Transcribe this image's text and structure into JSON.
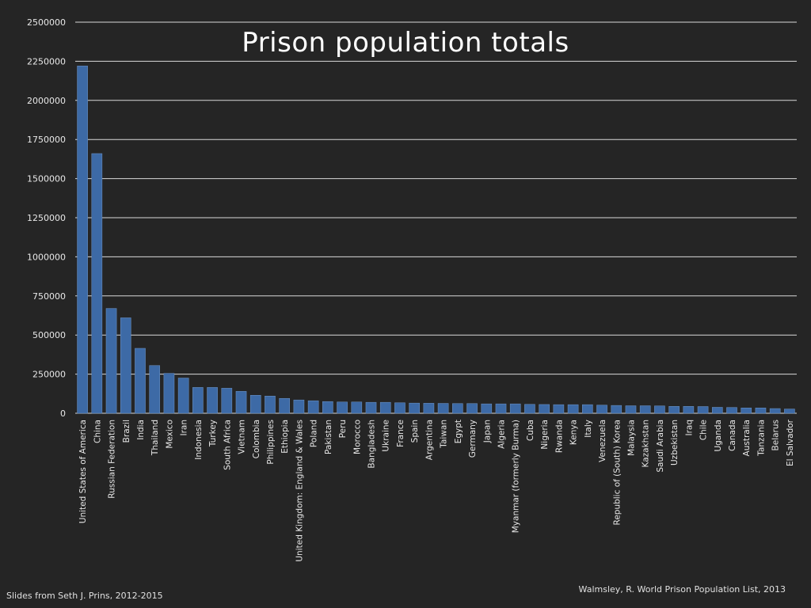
{
  "chart_data": {
    "type": "bar",
    "title": "Prison population totals",
    "xlabel": "",
    "ylabel": "",
    "ylim": [
      0,
      2500000
    ],
    "yticks": [
      0,
      250000,
      500000,
      750000,
      1000000,
      1250000,
      1500000,
      1750000,
      2000000,
      2250000,
      2500000
    ],
    "grid": true,
    "bar_color": "#3d6aa6",
    "categories": [
      "United States of America",
      "China",
      "Russian Federation",
      "Brazil",
      "India",
      "Thailand",
      "Mexico",
      "Iran",
      "Indonesia",
      "Turkey",
      "South Africa",
      "Vietnam",
      "Colombia",
      "Philippines",
      "Ethiopia",
      "United Kingdom: England & Wales",
      "Poland",
      "Pakistan",
      "Peru",
      "Morocco",
      "Bangladesh",
      "Ukraine",
      "France",
      "Spain",
      "Argentina",
      "Taiwan",
      "Egypt",
      "Germany",
      "Japan",
      "Algeria",
      "Myanmar (formerly Burma)",
      "Cuba",
      "Nigeria",
      "Rwanda",
      "Kenya",
      "Italy",
      "Venezuela",
      "Republic of (South) Korea",
      "Malaysia",
      "Kazakhstan",
      "Saudi Arabia",
      "Uzbekistan",
      "Iraq",
      "Chile",
      "Uganda",
      "Canada",
      "Australia",
      "Tanzania",
      "Belarus",
      "El Salvador"
    ],
    "values": [
      2220000,
      1660000,
      670000,
      610000,
      415000,
      305000,
      255000,
      225000,
      165000,
      165000,
      160000,
      140000,
      115000,
      110000,
      95000,
      85000,
      80000,
      75000,
      72000,
      72000,
      70000,
      70000,
      67000,
      65000,
      64000,
      63000,
      62000,
      62000,
      60000,
      60000,
      60000,
      57000,
      56000,
      55000,
      55000,
      55000,
      52000,
      50000,
      48000,
      48000,
      47000,
      44000,
      44000,
      43000,
      38000,
      37000,
      34000,
      34000,
      30000,
      27000
    ]
  },
  "footer": {
    "source": "Walmsley, R. World Prison Population List, 2013",
    "credit": "Slides from Seth J. Prins, 2012-2015"
  }
}
